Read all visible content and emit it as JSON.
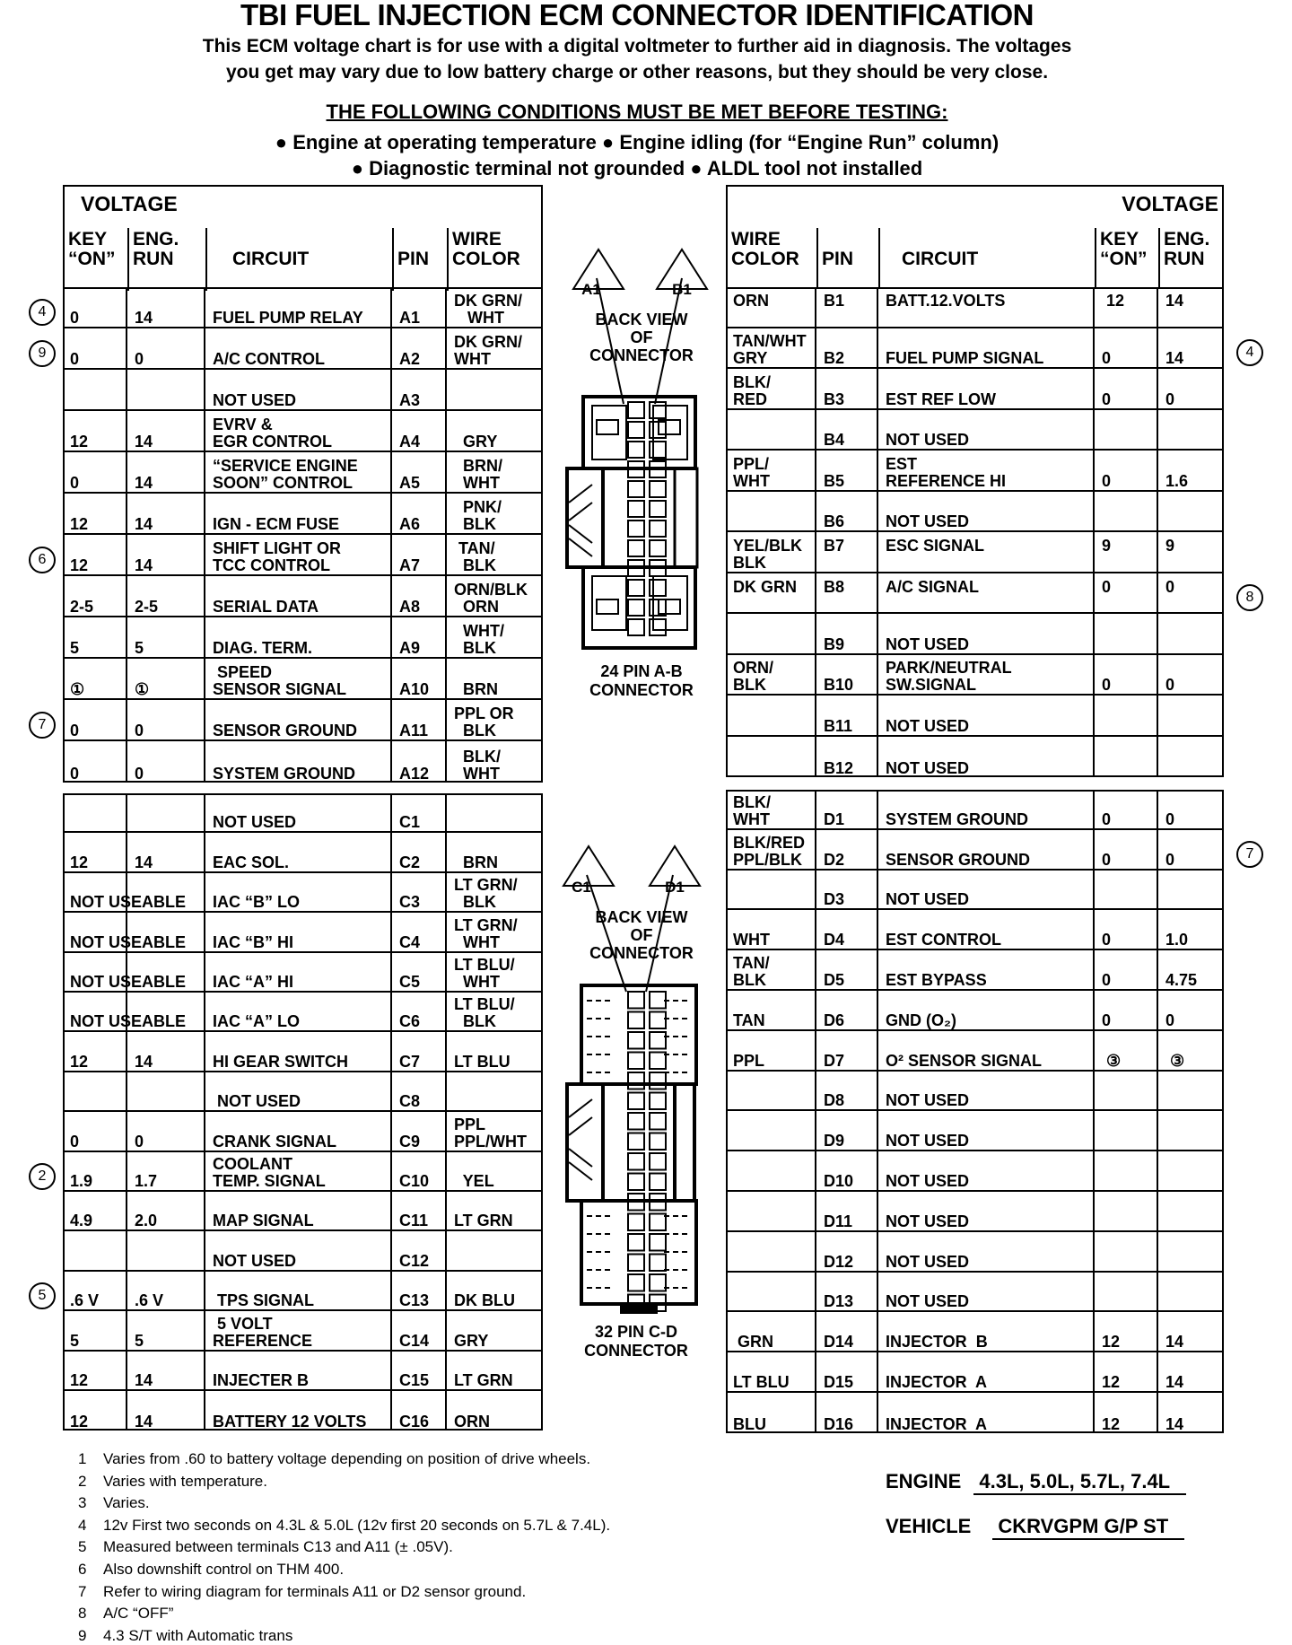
{
  "header": {
    "title": "TBI FUEL INJECTION ECM CONNECTOR IDENTIFICATION",
    "intro_line1": "This ECM voltage chart is for use with a digital voltmeter to further aid in diagnosis.  The voltages",
    "intro_line2": "you get may vary due to low battery charge or other reasons, but they should be very close.",
    "conditions_heading": "THE FOLLOWING CONDITIONS MUST BE MET BEFORE TESTING:",
    "conditions_line1": "● Engine at operating temperature  ● Engine idling (for “Engine Run” column)",
    "conditions_line2": "● Diagnostic terminal not grounded  ● ALDL tool not installed"
  },
  "column_headers": {
    "voltage": "VOLTAGE",
    "key_on": "KEY\n“ON”",
    "eng_run": "ENG.\nRUN",
    "circuit": "CIRCUIT",
    "pin": "PIN",
    "wire_color": "WIRE\nCOLOR"
  },
  "connectors": {
    "ab": {
      "pin1_a": "A1",
      "pin1_b": "B1",
      "back_view": "BACK VIEW\nOF\nCONNECTOR",
      "label": "24 PIN A-B\nCONNECTOR"
    },
    "cd": {
      "pin1_c": "C1",
      "pin1_d": "D1",
      "back_view": "BACK VIEW\nOF\nCONNECTOR",
      "label": "32 PIN C-D\nCONNECTOR"
    }
  },
  "tables": {
    "a": {
      "rows": [
        {
          "key_on": "0",
          "eng_run": "14",
          "circuit": "FUEL PUMP RELAY",
          "pin": "A1",
          "wire": "DK GRN/\n   WHT",
          "note": "4"
        },
        {
          "key_on": "0",
          "eng_run": "0",
          "circuit": "A/C CONTROL",
          "pin": "A2",
          "wire": "DK GRN/\nWHT",
          "note": "9"
        },
        {
          "key_on": "",
          "eng_run": "",
          "circuit": "NOT USED",
          "pin": "A3",
          "wire": ""
        },
        {
          "key_on": "12",
          "eng_run": "14",
          "circuit": "EVRV &\nEGR CONTROL",
          "pin": "A4",
          "wire": "  GRY"
        },
        {
          "key_on": "0",
          "eng_run": "14",
          "circuit": "“SERVICE ENGINE\nSOON” CONTROL",
          "pin": "A5",
          "wire": "  BRN/\n  WHT"
        },
        {
          "key_on": "12",
          "eng_run": "14",
          "circuit": "IGN - ECM FUSE",
          "pin": "A6",
          "wire": "  PNK/\n  BLK"
        },
        {
          "key_on": "12",
          "eng_run": "14",
          "circuit": "SHIFT LIGHT OR\nTCC CONTROL",
          "pin": "A7",
          "wire": " TAN/\n  BLK",
          "note": "6"
        },
        {
          "key_on": "2-5",
          "eng_run": "2-5",
          "circuit": "SERIAL DATA",
          "pin": "A8",
          "wire": "ORN/BLK\n  ORN"
        },
        {
          "key_on": "5",
          "eng_run": "5",
          "circuit": "DIAG. TERM.",
          "pin": "A9",
          "wire": "  WHT/\n  BLK"
        },
        {
          "key_on": "①",
          "eng_run": "①",
          "circuit": " SPEED\nSENSOR SIGNAL",
          "pin": "A10",
          "wire": "  BRN"
        },
        {
          "key_on": "0",
          "eng_run": "0",
          "circuit": "SENSOR GROUND",
          "pin": "A11",
          "wire": "PPL OR\n  BLK",
          "note": "7"
        },
        {
          "key_on": "0",
          "eng_run": "0",
          "circuit": "SYSTEM GROUND",
          "pin": "A12",
          "wire": "  BLK/\n  WHT"
        }
      ]
    },
    "b": {
      "rows": [
        {
          "wire": "ORN",
          "pin": "B1",
          "circuit": "BATT.12.VOLTS",
          "key_on": " 12",
          "eng_run": "14"
        },
        {
          "wire": "TAN/WHT\nGRY",
          "pin": "B2",
          "circuit": "FUEL PUMP SIGNAL",
          "key_on": "0",
          "eng_run": "14",
          "note": "4"
        },
        {
          "wire": "BLK/\nRED",
          "pin": "B3",
          "circuit": "EST REF LOW",
          "key_on": "0",
          "eng_run": "0"
        },
        {
          "wire": "",
          "pin": "B4",
          "circuit": "NOT USED",
          "key_on": "",
          "eng_run": ""
        },
        {
          "wire": "PPL/\nWHT",
          "pin": "B5",
          "circuit": "EST\nREFERENCE HI",
          "key_on": "0",
          "eng_run": "1.6"
        },
        {
          "wire": "",
          "pin": "B6",
          "circuit": "NOT USED",
          "key_on": "",
          "eng_run": ""
        },
        {
          "wire": "YEL/BLK\nBLK",
          "pin": "B7",
          "circuit": "ESC SIGNAL",
          "key_on": "9",
          "eng_run": "9"
        },
        {
          "wire": "DK GRN",
          "pin": "B8",
          "circuit": "A/C SIGNAL",
          "key_on": "0",
          "eng_run": "0",
          "note": "8"
        },
        {
          "wire": "",
          "pin": "B9",
          "circuit": "NOT USED",
          "key_on": "",
          "eng_run": ""
        },
        {
          "wire": "ORN/\nBLK",
          "pin": "B10",
          "circuit": "PARK/NEUTRAL\nSW.SIGNAL",
          "key_on": "0",
          "eng_run": "0"
        },
        {
          "wire": "",
          "pin": "B11",
          "circuit": "NOT USED",
          "key_on": "",
          "eng_run": ""
        },
        {
          "wire": "",
          "pin": "B12",
          "circuit": "NOT USED",
          "key_on": "",
          "eng_run": ""
        }
      ]
    },
    "c": {
      "rows": [
        {
          "key_on": "",
          "eng_run": "",
          "circuit": "NOT USED",
          "pin": "C1",
          "wire": ""
        },
        {
          "key_on": "12",
          "eng_run": "14",
          "circuit": "EAC SOL.",
          "pin": "C2",
          "wire": "  BRN"
        },
        {
          "key_on": "NOT USEABLE",
          "eng_run": "",
          "circuit": "IAC “B” LO",
          "pin": "C3",
          "wire": "LT GRN/\n  BLK"
        },
        {
          "key_on": "NOT USEABLE",
          "eng_run": "",
          "circuit": "IAC “B” HI",
          "pin": "C4",
          "wire": "LT GRN/\n  WHT"
        },
        {
          "key_on": "NOT USEABLE",
          "eng_run": "",
          "circuit": "IAC “A” HI",
          "pin": "C5",
          "wire": "LT BLU/\n  WHT"
        },
        {
          "key_on": "NOT USEABLE",
          "eng_run": "",
          "circuit": "IAC “A” LO",
          "pin": "C6",
          "wire": "LT BLU/\n  BLK"
        },
        {
          "key_on": "12",
          "eng_run": "14",
          "circuit": "HI GEAR SWITCH",
          "pin": "C7",
          "wire": "LT BLU"
        },
        {
          "key_on": "",
          "eng_run": "",
          "circuit": " NOT USED",
          "pin": "C8",
          "wire": ""
        },
        {
          "key_on": "0",
          "eng_run": "0",
          "circuit": "CRANK SIGNAL",
          "pin": "C9",
          "wire": "PPL\nPPL/WHT"
        },
        {
          "key_on": "1.9",
          "eng_run": "1.7",
          "circuit": "COOLANT\nTEMP. SIGNAL",
          "pin": "C10",
          "wire": "  YEL",
          "note": "2"
        },
        {
          "key_on": "4.9",
          "eng_run": "2.0",
          "circuit": "MAP SIGNAL",
          "pin": "C11",
          "wire": "LT GRN"
        },
        {
          "key_on": "",
          "eng_run": "",
          "circuit": "NOT USED",
          "pin": "C12",
          "wire": ""
        },
        {
          "key_on": ".6 V",
          "eng_run": ".6 V",
          "circuit": " TPS SIGNAL",
          "pin": "C13",
          "wire": "DK BLU",
          "note": "5"
        },
        {
          "key_on": "5",
          "eng_run": "5",
          "circuit": " 5 VOLT\nREFERENCE",
          "pin": "C14",
          "wire": "GRY"
        },
        {
          "key_on": "12",
          "eng_run": "14",
          "circuit": "INJECTER B",
          "pin": "C15",
          "wire": "LT GRN"
        },
        {
          "key_on": "12",
          "eng_run": "14",
          "circuit": "BATTERY 12 VOLTS",
          "pin": "C16",
          "wire": "ORN"
        }
      ]
    },
    "d": {
      "rows": [
        {
          "wire": "BLK/\nWHT",
          "pin": "D1",
          "circuit": "SYSTEM GROUND",
          "key_on": "0",
          "eng_run": "0"
        },
        {
          "wire": "BLK/RED\nPPL/BLK",
          "pin": "D2",
          "circuit": "SENSOR GROUND",
          "key_on": "0",
          "eng_run": "0",
          "note": "7"
        },
        {
          "wire": "",
          "pin": "D3",
          "circuit": "NOT USED",
          "key_on": "",
          "eng_run": ""
        },
        {
          "wire": "WHT",
          "pin": "D4",
          "circuit": "EST CONTROL",
          "key_on": "0",
          "eng_run": "1.0"
        },
        {
          "wire": "TAN/\nBLK",
          "pin": "D5",
          "circuit": "EST BYPASS",
          "key_on": "0",
          "eng_run": "4.75"
        },
        {
          "wire": "TAN",
          "pin": "D6",
          "circuit": "GND (O₂)",
          "key_on": "0",
          "eng_run": "0"
        },
        {
          "wire": "PPL",
          "pin": "D7",
          "circuit": "O² SENSOR SIGNAL",
          "key_on": " ③",
          "eng_run": " ③"
        },
        {
          "wire": "",
          "pin": "D8",
          "circuit": "NOT USED",
          "key_on": "",
          "eng_run": ""
        },
        {
          "wire": "",
          "pin": "D9",
          "circuit": "NOT USED",
          "key_on": "",
          "eng_run": ""
        },
        {
          "wire": "",
          "pin": "D10",
          "circuit": "NOT USED",
          "key_on": "",
          "eng_run": ""
        },
        {
          "wire": "",
          "pin": "D11",
          "circuit": "NOT USED",
          "key_on": "",
          "eng_run": ""
        },
        {
          "wire": "",
          "pin": "D12",
          "circuit": "NOT USED",
          "key_on": "",
          "eng_run": ""
        },
        {
          "wire": "",
          "pin": "D13",
          "circuit": "NOT USED",
          "key_on": "",
          "eng_run": ""
        },
        {
          "wire": " GRN",
          "pin": "D14",
          "circuit": "INJECTOR  B",
          "key_on": "12",
          "eng_run": "14"
        },
        {
          "wire": "LT BLU",
          "pin": "D15",
          "circuit": "INJECTOR  A",
          "key_on": "12",
          "eng_run": "14"
        },
        {
          "wire": "BLU",
          "pin": "D16",
          "circuit": "INJECTOR  A",
          "key_on": "12",
          "eng_run": "14"
        }
      ]
    }
  },
  "footnotes": [
    {
      "num": "1",
      "text": "Varies from .60 to battery voltage depending on position of drive wheels."
    },
    {
      "num": "2",
      "text": "Varies with temperature."
    },
    {
      "num": "3",
      "text": "Varies."
    },
    {
      "num": "4",
      "text": "12v First two seconds on 4.3L & 5.0L (12v first 20 seconds on 5.7L & 7.4L)."
    },
    {
      "num": "5",
      "text": "Measured between terminals C13 and A11 (± .05V)."
    },
    {
      "num": "6",
      "text": "Also downshift control on THM 400."
    },
    {
      "num": "7",
      "text": "Refer to wiring diagram for terminals A11 or D2 sensor ground."
    },
    {
      "num": "8",
      "text": "A/C “OFF”"
    },
    {
      "num": "9",
      "text": "4.3 S/T with Automatic trans"
    }
  ],
  "specs": {
    "engine_label": "ENGINE",
    "engine_value": "4.3L, 5.0L, 5.7L, 7.4L",
    "vehicle_label": "VEHICLE",
    "vehicle_value": "CKRVGPM G/P ST"
  }
}
